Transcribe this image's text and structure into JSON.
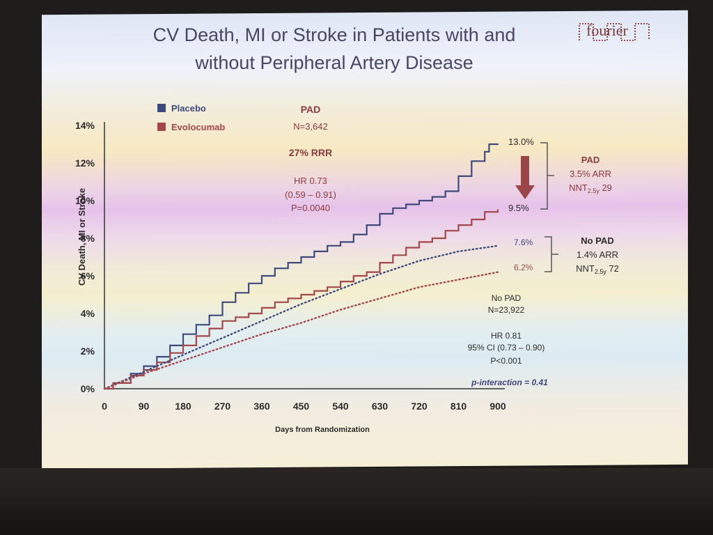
{
  "slide": {
    "title_line1": "CV Death, MI or Stroke in Patients with and",
    "title_line2": "without Peripheral Artery Disease",
    "logo": "fourier"
  },
  "colors": {
    "placebo": "#3e4a7c",
    "evolocumab": "#a4474a",
    "accent_text": "#8a3a40",
    "dark_text": "#2b2b2b"
  },
  "annotations": {
    "pad_header": "PAD",
    "pad_n": "N=3,642",
    "pad_rrr": "27% RRR",
    "pad_hr": "HR 0.73",
    "pad_ci": "(0.59 – 0.91)",
    "pad_p": "P=0.0040",
    "pad_end_placebo": "13.0%",
    "pad_end_evo": "9.5%",
    "pad_bracket_title": "PAD",
    "pad_bracket_arr": "3.5% ARR",
    "pad_bracket_nnt": "NNT",
    "pad_bracket_nnt_sub": "2.5y",
    "pad_bracket_nnt_val": " 29",
    "nopad_end_placebo": "7.6%",
    "nopad_end_evo": "6.2%",
    "nopad_bracket_title": "No PAD",
    "nopad_bracket_arr": "1.4% ARR",
    "nopad_bracket_nnt": "NNT",
    "nopad_bracket_nnt_sub": "2.5y",
    "nopad_bracket_nnt_val": " 72",
    "nopad_header": "No PAD",
    "nopad_n": "N=23,922",
    "nopad_hr": "HR 0.81",
    "nopad_ci": "95% CI (0.73 – 0.90)",
    "nopad_p": "P<0.001",
    "p_interaction": "p-interaction = 0.41"
  },
  "chart_data": {
    "type": "line",
    "xlabel": "Days from  Randomization",
    "ylabel": "CV Death, MI or Stroke",
    "xlim": [
      0,
      900
    ],
    "ylim": [
      0,
      14
    ],
    "xticks": [
      0,
      90,
      180,
      270,
      360,
      450,
      540,
      630,
      720,
      810,
      900
    ],
    "yticks": [
      0,
      2,
      4,
      6,
      8,
      10,
      12,
      14
    ],
    "ytick_labels": [
      "0%",
      "2%",
      "4%",
      "6%",
      "8%",
      "10%",
      "12%",
      "14%"
    ],
    "legend": [
      {
        "name": "Placebo",
        "color": "#3e4a7c"
      },
      {
        "name": "Evolocumab",
        "color": "#a4474a"
      }
    ],
    "series": [
      {
        "name": "Placebo",
        "style": "solid",
        "color": "#3e4a7c",
        "x": [
          0,
          20,
          60,
          90,
          120,
          150,
          180,
          210,
          240,
          270,
          300,
          330,
          360,
          390,
          420,
          450,
          480,
          510,
          540,
          570,
          600,
          630,
          660,
          690,
          720,
          750,
          780,
          810,
          840,
          870,
          880,
          900
        ],
        "y": [
          0,
          0.3,
          0.8,
          1.2,
          1.7,
          2.3,
          2.9,
          3.4,
          3.9,
          4.6,
          5.1,
          5.6,
          6.0,
          6.4,
          6.7,
          7.0,
          7.3,
          7.6,
          7.8,
          8.2,
          8.7,
          9.3,
          9.6,
          9.8,
          10.0,
          10.2,
          10.5,
          11.3,
          12.1,
          12.6,
          13.0,
          13.0
        ]
      },
      {
        "name": "Evolocumab",
        "style": "solid",
        "color": "#a4474a",
        "x": [
          0,
          20,
          60,
          90,
          120,
          150,
          180,
          210,
          240,
          270,
          300,
          330,
          360,
          390,
          420,
          450,
          480,
          510,
          540,
          570,
          600,
          630,
          660,
          690,
          720,
          750,
          780,
          810,
          840,
          870,
          900
        ],
        "y": [
          0,
          0.3,
          0.7,
          1.0,
          1.4,
          1.9,
          2.3,
          2.8,
          3.2,
          3.6,
          3.8,
          4.0,
          4.3,
          4.6,
          4.8,
          5.0,
          5.2,
          5.4,
          5.7,
          6.0,
          6.2,
          6.7,
          7.1,
          7.5,
          7.8,
          8.0,
          8.4,
          8.7,
          9.0,
          9.4,
          9.5
        ]
      },
      {
        "name": "",
        "style": "dotted",
        "color": "#3e4a7c",
        "x": [
          0,
          90,
          180,
          270,
          360,
          450,
          540,
          630,
          720,
          810,
          900
        ],
        "y": [
          0,
          0.9,
          1.8,
          2.7,
          3.6,
          4.5,
          5.3,
          6.1,
          6.8,
          7.3,
          7.6
        ]
      },
      {
        "name": "",
        "style": "dotted",
        "color": "#a4474a",
        "x": [
          0,
          90,
          180,
          270,
          360,
          450,
          540,
          630,
          720,
          810,
          900
        ],
        "y": [
          0,
          0.8,
          1.5,
          2.2,
          2.9,
          3.5,
          4.2,
          4.8,
          5.4,
          5.8,
          6.2
        ]
      }
    ]
  }
}
